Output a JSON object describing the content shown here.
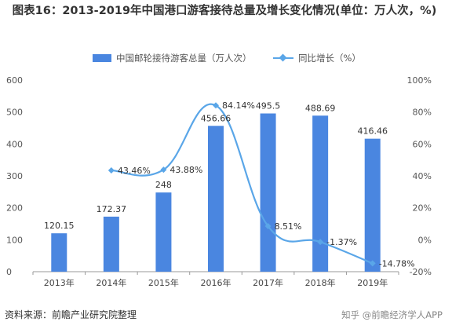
{
  "title": "图表16：2013-2019年中国港口游客接待总量及增长变化情况(单位：万人次，%)",
  "source": "资料来源：前瞻产业研究院整理",
  "watermark_footer": "知乎 @前瞻经济学人APP",
  "colors": {
    "bar": "#4a86e0",
    "line": "#5aa6e8",
    "axis": "#999999",
    "text": "#333333"
  },
  "chart_data": {
    "type": "bar",
    "categories": [
      "2013年",
      "2014年",
      "2015年",
      "2016年",
      "2017年",
      "2018年",
      "2019年"
    ],
    "series": [
      {
        "name": "中国邮轮接待游客总量（万人次）",
        "type": "bar",
        "axis": "left",
        "values": [
          120.15,
          172.37,
          248,
          456.66,
          495.5,
          488.69,
          416.46
        ],
        "labels": [
          "120.15",
          "172.37",
          "248",
          "456.66",
          "495.5",
          "488.69",
          "416.46"
        ]
      },
      {
        "name": "同比增长（%）",
        "type": "line",
        "axis": "right",
        "values": [
          null,
          43.46,
          43.88,
          84.14,
          8.51,
          -1.37,
          -14.78
        ],
        "labels": [
          "",
          "43.46%",
          "43.88%",
          "84.14%",
          "8.51%",
          "-1.37%",
          "-14.78%"
        ]
      }
    ],
    "y_left": {
      "min": 0,
      "max": 600,
      "ticks": [
        "0",
        "100",
        "200",
        "300",
        "400",
        "500",
        "600"
      ]
    },
    "y_right": {
      "min": -20,
      "max": 100,
      "ticks": [
        "-20%",
        "0%",
        "20%",
        "40%",
        "60%",
        "80%",
        "100%"
      ]
    },
    "legend_position": "top-center",
    "grid": false
  }
}
